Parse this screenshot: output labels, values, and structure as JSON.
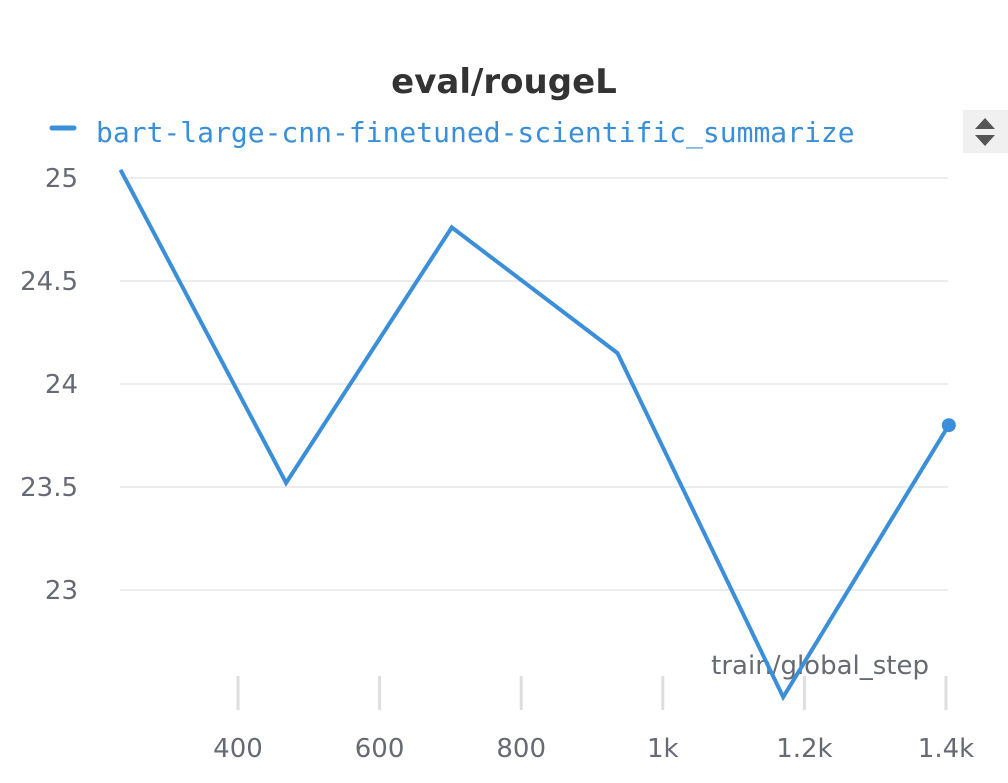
{
  "chart_data": {
    "type": "line",
    "title": "eval/rougeL",
    "xlabel": "train/global_step",
    "ylabel": "",
    "legend": {
      "placement": "top-left",
      "entries": [
        "bart-large-cnn-finetuned-scientific_summarize"
      ]
    },
    "grid": true,
    "xlim": [
      220,
      1420
    ],
    "ylim": [
      22.47,
      25.05
    ],
    "x_ticks": [
      400,
      600,
      800,
      1000,
      1200,
      1400
    ],
    "x_tick_labels": [
      "400",
      "600",
      "800",
      "1k",
      "1.2k",
      "1.4k"
    ],
    "y_ticks": [
      25,
      24.5,
      24,
      23.5,
      23
    ],
    "y_tick_labels": [
      "25",
      "24.5",
      "24",
      "23.5",
      "23"
    ],
    "series": [
      {
        "name": "bart-large-cnn-finetuned-scientific_summarize",
        "color": "#3a8fd8",
        "x": [
          234,
          468,
          702,
          936,
          1170,
          1404
        ],
        "y": [
          25.04,
          23.52,
          24.76,
          24.15,
          22.48,
          23.8
        ],
        "last_point_marker": true
      }
    ]
  },
  "icons": {
    "legend_scroll": "up-down-arrows-icon"
  }
}
